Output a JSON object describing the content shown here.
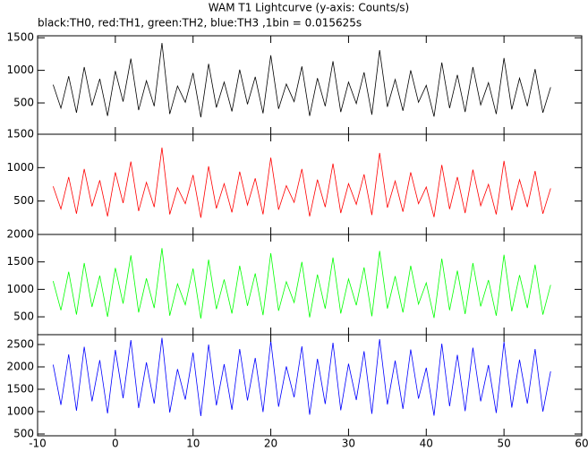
{
  "chart_data": [
    {
      "type": "line",
      "title": "WAM T1 Lightcurve (y-axis: Counts/s)",
      "subtitle": "black:TH0, red:TH1, green:TH2, blue:TH3 ,1bin = 0.015625s",
      "x": [
        -8,
        -7,
        -6,
        -5,
        -4,
        -3,
        -2,
        -1,
        0,
        1,
        2,
        3,
        4,
        5,
        6,
        7,
        8,
        9,
        10,
        11,
        12,
        13,
        14,
        15,
        16,
        17,
        18,
        19,
        20,
        21,
        22,
        23,
        24,
        25,
        26,
        27,
        28,
        29,
        30,
        31,
        32,
        33,
        34,
        35,
        36,
        37,
        38,
        39,
        40,
        41,
        42,
        43,
        44,
        45,
        46,
        47,
        48,
        49,
        50,
        51,
        52,
        53,
        54,
        55,
        56
      ],
      "series": [
        {
          "color": "#000000",
          "values": [
            780,
            420,
            910,
            350,
            1050,
            460,
            870,
            300,
            990,
            520,
            1180,
            390,
            840,
            450,
            1420,
            330,
            760,
            510,
            960,
            280,
            1100,
            430,
            820,
            370,
            1010,
            480,
            900,
            340,
            1230,
            410,
            790,
            520,
            1060,
            300,
            880,
            450,
            1140,
            360,
            820,
            490,
            970,
            320,
            1310,
            440,
            860,
            380,
            1000,
            510,
            770,
            290,
            1120,
            420,
            930,
            360,
            1050,
            470,
            810,
            330,
            1190,
            400,
            880,
            450,
            1020,
            350,
            740
          ]
        }
      ],
      "xlim": [
        -10,
        60
      ],
      "xticks": [
        -10,
        0,
        10,
        20,
        30,
        40,
        50,
        60
      ],
      "ylim": [
        20,
        1530
      ],
      "yticks": [
        500,
        1000,
        1500
      ]
    },
    {
      "type": "line",
      "x": [
        -8,
        -7,
        -6,
        -5,
        -4,
        -3,
        -2,
        -1,
        0,
        1,
        2,
        3,
        4,
        5,
        6,
        7,
        8,
        9,
        10,
        11,
        12,
        13,
        14,
        15,
        16,
        17,
        18,
        19,
        20,
        21,
        22,
        23,
        24,
        25,
        26,
        27,
        28,
        29,
        30,
        31,
        32,
        33,
        34,
        35,
        36,
        37,
        38,
        39,
        40,
        41,
        42,
        43,
        44,
        45,
        46,
        47,
        48,
        49,
        50,
        51,
        52,
        53,
        54,
        55,
        56
      ],
      "series": [
        {
          "color": "#ff0000",
          "values": [
            720,
            380,
            860,
            310,
            980,
            420,
            810,
            270,
            930,
            470,
            1090,
            350,
            780,
            410,
            1300,
            300,
            700,
            460,
            890,
            250,
            1020,
            390,
            760,
            330,
            940,
            440,
            840,
            300,
            1150,
            370,
            730,
            480,
            980,
            270,
            820,
            410,
            1060,
            320,
            760,
            450,
            900,
            290,
            1220,
            400,
            800,
            340,
            930,
            460,
            710,
            260,
            1040,
            380,
            860,
            320,
            970,
            430,
            750,
            300,
            1100,
            360,
            820,
            410,
            950,
            310,
            690
          ]
        }
      ],
      "xlim": [
        -10,
        60
      ],
      "xticks": [
        -10,
        0,
        10,
        20,
        30,
        40,
        50,
        60
      ],
      "ylim": [
        0,
        1500
      ],
      "yticks": [
        500,
        1000,
        1500
      ]
    },
    {
      "type": "line",
      "x": [
        -8,
        -7,
        -6,
        -5,
        -4,
        -3,
        -2,
        -1,
        0,
        1,
        2,
        3,
        4,
        5,
        6,
        7,
        8,
        9,
        10,
        11,
        12,
        13,
        14,
        15,
        16,
        17,
        18,
        19,
        20,
        21,
        22,
        23,
        24,
        25,
        26,
        27,
        28,
        29,
        30,
        31,
        32,
        33,
        34,
        35,
        36,
        37,
        38,
        39,
        40,
        41,
        42,
        43,
        44,
        45,
        46,
        47,
        48,
        49,
        50,
        51,
        52,
        53,
        54,
        55,
        56
      ],
      "series": [
        {
          "color": "#00ff00",
          "values": [
            1150,
            620,
            1320,
            540,
            1480,
            680,
            1250,
            500,
            1390,
            740,
            1620,
            580,
            1200,
            660,
            1750,
            520,
            1100,
            720,
            1380,
            470,
            1540,
            640,
            1180,
            560,
            1430,
            700,
            1290,
            530,
            1660,
            610,
            1140,
            760,
            1500,
            490,
            1270,
            650,
            1580,
            560,
            1190,
            710,
            1400,
            510,
            1700,
            650,
            1240,
            580,
            1430,
            730,
            1120,
            480,
            1560,
            620,
            1340,
            550,
            1480,
            690,
            1170,
            520,
            1630,
            600,
            1260,
            660,
            1450,
            540,
            1080
          ]
        }
      ],
      "xlim": [
        -10,
        60
      ],
      "xticks": [
        -10,
        0,
        10,
        20,
        30,
        40,
        50,
        60
      ],
      "ylim": [
        175,
        2000
      ],
      "yticks": [
        500,
        1000,
        1500,
        2000
      ]
    },
    {
      "type": "line",
      "x": [
        -8,
        -7,
        -6,
        -5,
        -4,
        -3,
        -2,
        -1,
        0,
        1,
        2,
        3,
        4,
        5,
        6,
        7,
        8,
        9,
        10,
        11,
        12,
        13,
        14,
        15,
        16,
        17,
        18,
        19,
        20,
        21,
        22,
        23,
        24,
        25,
        26,
        27,
        28,
        29,
        30,
        31,
        32,
        33,
        34,
        35,
        36,
        37,
        38,
        39,
        40,
        41,
        42,
        43,
        44,
        45,
        46,
        47,
        48,
        49,
        50,
        51,
        52,
        53,
        54,
        55,
        56
      ],
      "series": [
        {
          "color": "#0000ff",
          "values": [
            2050,
            1150,
            2280,
            1020,
            2450,
            1230,
            2150,
            960,
            2380,
            1300,
            2600,
            1080,
            2100,
            1180,
            2650,
            980,
            1950,
            1270,
            2320,
            900,
            2500,
            1140,
            2060,
            1040,
            2400,
            1250,
            2200,
            990,
            2580,
            1110,
            2010,
            1320,
            2460,
            930,
            2180,
            1170,
            2540,
            1030,
            2070,
            1260,
            2350,
            950,
            2620,
            1160,
            2140,
            1060,
            2390,
            1290,
            1980,
            910,
            2520,
            1120,
            2270,
            1010,
            2430,
            1230,
            2040,
            970,
            2560,
            1090,
            2160,
            1180,
            2400,
            1000,
            1900
          ]
        }
      ],
      "xlim": [
        -10,
        60
      ],
      "xticks": [
        -10,
        0,
        10,
        20,
        30,
        40,
        50,
        60
      ],
      "ylim": [
        460,
        2720
      ],
      "yticks": [
        500,
        1000,
        1500,
        2000,
        2500
      ]
    }
  ]
}
